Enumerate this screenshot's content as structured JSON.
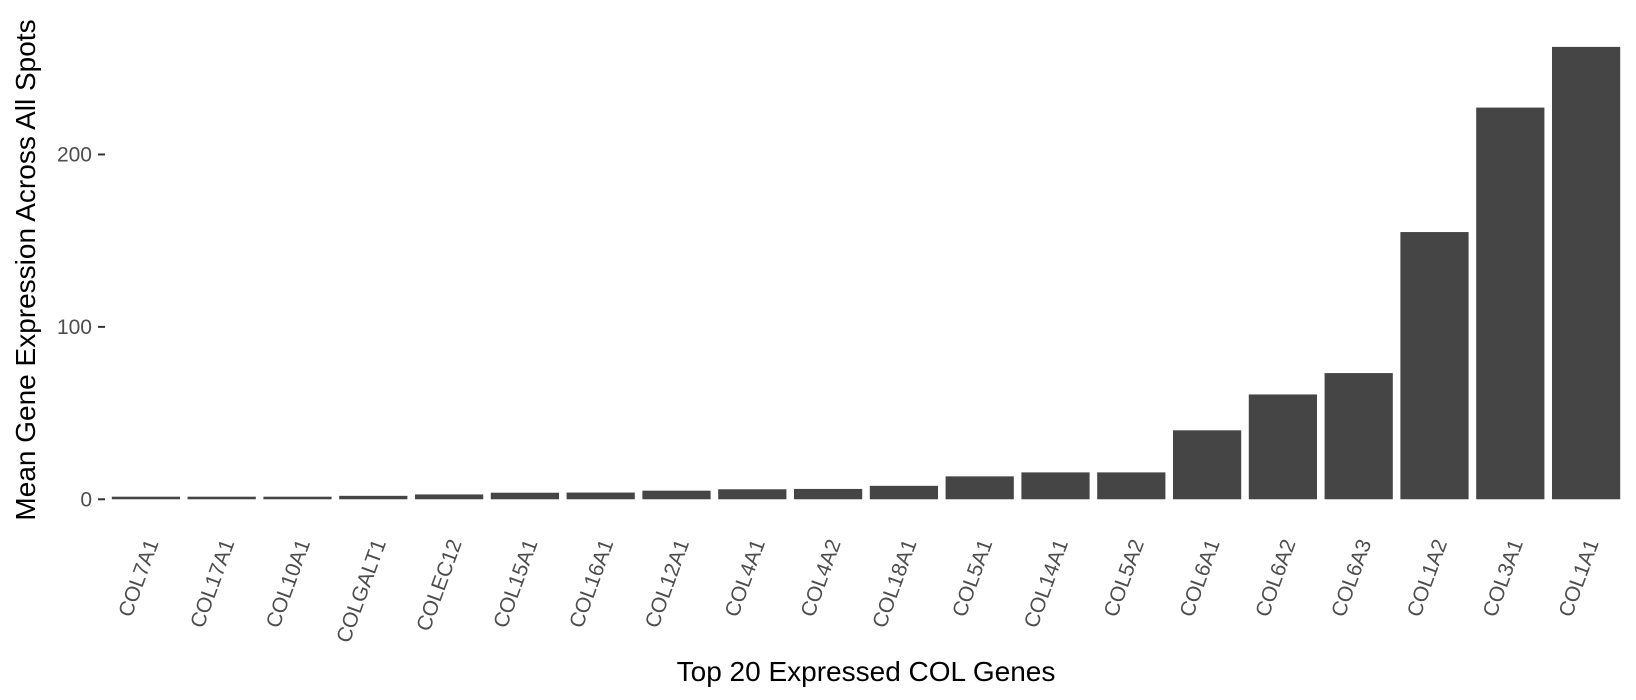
{
  "chart_data": {
    "type": "bar",
    "title": "",
    "xlabel": "Top 20 Expressed COL Genes",
    "ylabel": "Mean Gene Expression Across All Spots",
    "categories": [
      "COL7A1",
      "COL17A1",
      "COL10A1",
      "COLGALT1",
      "COLEC12",
      "COL15A1",
      "COL16A1",
      "COL12A1",
      "COL4A1",
      "COL4A2",
      "COL18A1",
      "COL5A1",
      "COL14A1",
      "COL5A2",
      "COL6A1",
      "COL6A2",
      "COL6A3",
      "COL1A2",
      "COL3A1",
      "COL1A1"
    ],
    "values": [
      1.5,
      1.5,
      1.5,
      2.0,
      2.8,
      3.8,
      3.9,
      5.0,
      5.8,
      6.0,
      7.8,
      13.3,
      15.6,
      15.6,
      40.0,
      60.8,
      73.2,
      155.0,
      227.2,
      262.4
    ],
    "ylim": [
      -15.5,
      278
    ],
    "yticks": [
      0,
      100,
      200
    ],
    "grid": false,
    "legend": "none",
    "bar_color": "#454545"
  }
}
